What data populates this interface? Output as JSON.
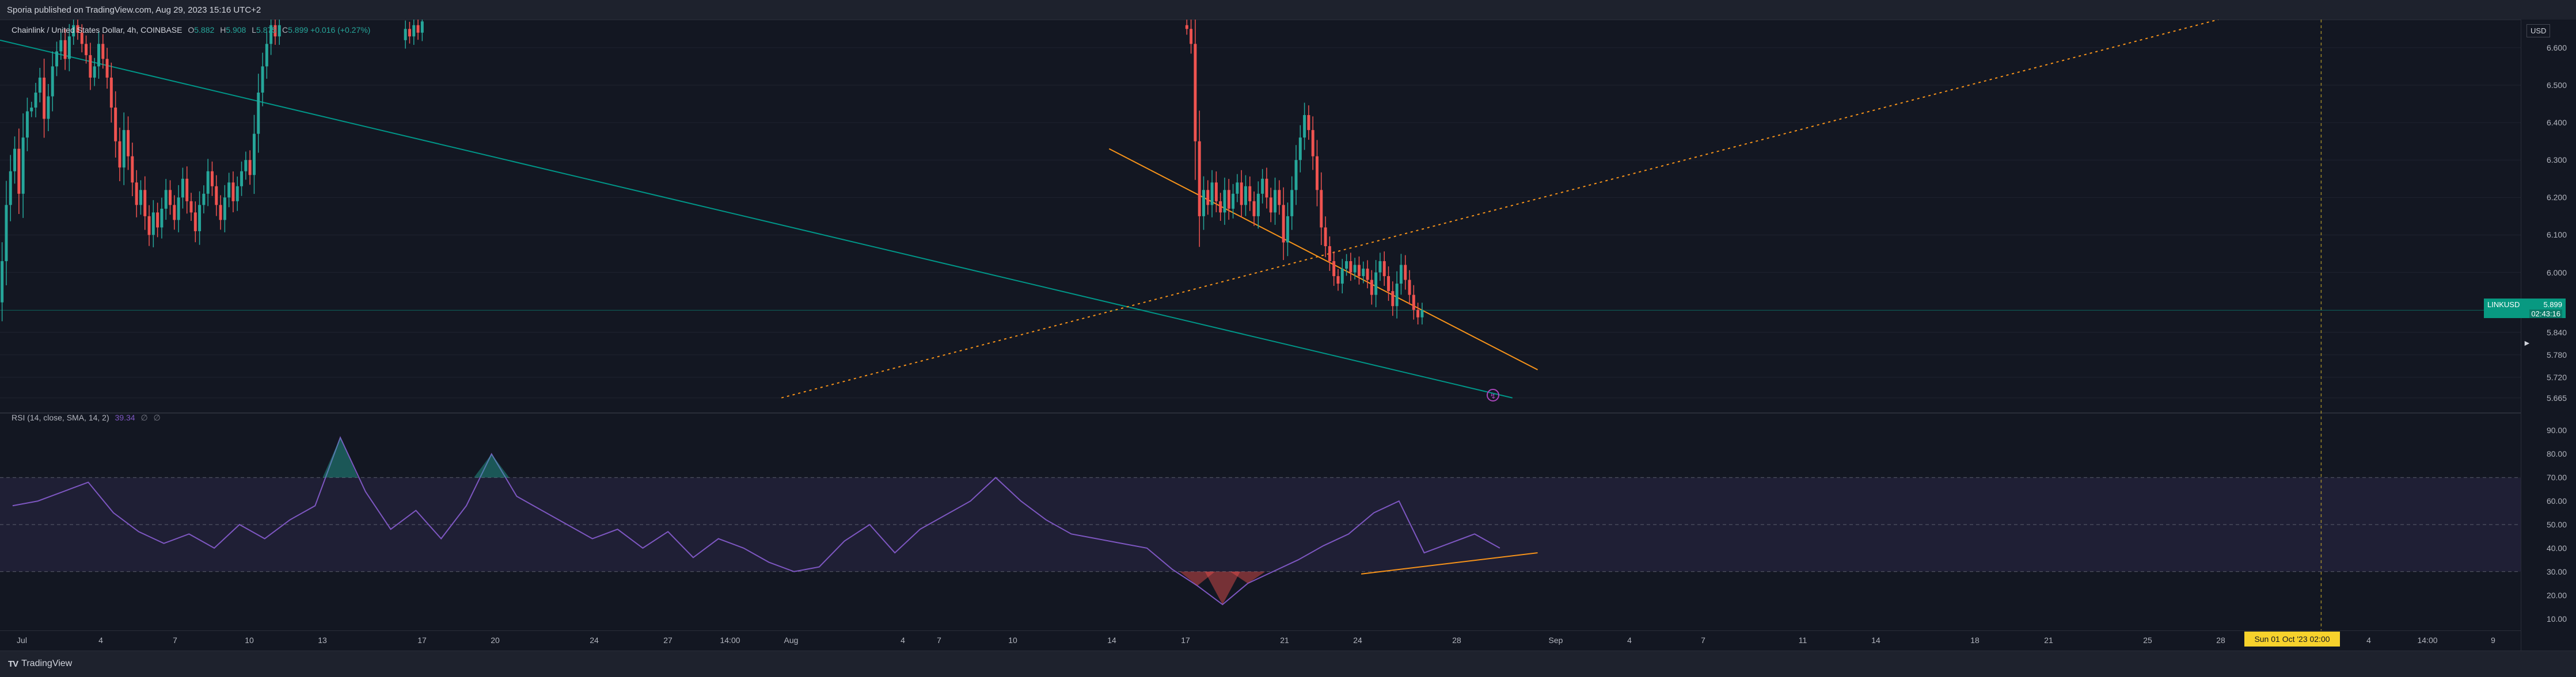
{
  "header": {
    "publish_text": "Sporia published on TradingView.com, Aug 29, 2023 15:16 UTC+2"
  },
  "legend": {
    "symbol": "Chainlink / United States Dollar, 4h, COINBASE",
    "open_label": "O",
    "open": "5.882",
    "high_label": "H",
    "high": "5.908",
    "low_label": "L",
    "low": "5.875",
    "close_label": "C",
    "close": "5.899",
    "change": "+0.016 (+0.27%)"
  },
  "rsi_legend": {
    "label": "RSI (14, close, SMA, 14, 2)",
    "value": "39.34",
    "na1": "∅",
    "na2": "∅"
  },
  "price_axis": {
    "currency": "USD",
    "labels": [
      "6.600",
      "6.500",
      "6.400",
      "6.300",
      "6.200",
      "6.100",
      "6.000",
      "5.840",
      "5.780",
      "5.720",
      "5.665"
    ]
  },
  "rsi_axis": {
    "labels": [
      "90.00",
      "80.00",
      "70.00",
      "60.00",
      "50.00",
      "40.00",
      "30.00",
      "20.00",
      "10.00"
    ]
  },
  "last_price": {
    "symbol": "LINKUSD",
    "price": "5.899",
    "countdown": "02:43:16"
  },
  "time_axis": {
    "labels": [
      "Jul",
      "4",
      "7",
      "10",
      "13",
      "17",
      "20",
      "24",
      "27",
      "14:00",
      "Aug",
      "4",
      "7",
      "10",
      "14",
      "17",
      "21",
      "24",
      "28",
      "Sep",
      "4",
      "7",
      "11",
      "14",
      "18",
      "21",
      "25",
      "28",
      "Oct",
      "4",
      "14:00",
      "9"
    ],
    "crosshair_date": "Sun 01 Oct '23   02:00"
  },
  "footer": {
    "brand": "TradingView"
  },
  "colors": {
    "up": "#26a69a",
    "down": "#ef5350",
    "rsi": "#7e57c2",
    "trend_orange": "#f7931a",
    "trend_teal": "#009688"
  },
  "chart_data": [
    {
      "type": "candlestick",
      "title": "Chainlink / United States Dollar, 4h, COINBASE",
      "ylim": [
        5.64,
        6.675
      ],
      "x_range": [
        "2023-07-01",
        "2023-10-09"
      ],
      "segments": [
        {
          "start": "2023-07-01",
          "start_price": 5.92,
          "closes": [
            6.03,
            6.18,
            6.27,
            6.33,
            6.21,
            6.36,
            6.43,
            6.44,
            6.48,
            6.52,
            6.41,
            6.47,
            6.55,
            6.59,
            6.62,
            6.57,
            6.63,
            6.66,
            6.64,
            6.61,
            6.58,
            6.52,
            6.55,
            6.61,
            6.57,
            6.52,
            6.44,
            6.35,
            6.28,
            6.38,
            6.31,
            6.24,
            6.18,
            6.22,
            6.15,
            6.1,
            6.16,
            6.12,
            6.17,
            6.22,
            6.18,
            6.14,
            6.2,
            6.25,
            6.19,
            6.16,
            6.11,
            6.18,
            6.21,
            6.27,
            6.23,
            6.18,
            6.14,
            6.2,
            6.24,
            6.19,
            6.23,
            6.27,
            6.3,
            6.26,
            6.37,
            6.48,
            6.55,
            6.61,
            6.66,
            6.63,
            6.66
          ]
        },
        {
          "start": "2023-07-17",
          "start_price": 6.62,
          "closes": [
            6.65,
            6.63,
            6.66,
            6.64,
            6.67
          ]
        },
        {
          "start": "2023-08-17",
          "start_price": 6.66,
          "closes": [
            6.65,
            6.61,
            6.35,
            6.15,
            6.22,
            6.18,
            6.24,
            6.19,
            6.16,
            6.22,
            6.17,
            6.21,
            6.24,
            6.18,
            6.23,
            6.19,
            6.15,
            6.21,
            6.25,
            6.2,
            6.16,
            6.22,
            6.18,
            6.08,
            6.15,
            6.22,
            6.3,
            6.36,
            6.42,
            6.38,
            6.31,
            6.22,
            6.12,
            6.07,
            6.03,
            5.99,
            5.97,
            6.01,
            6.03,
            6.0,
            6.02,
            5.99,
            6.01,
            5.98,
            5.94,
            6.0,
            6.03,
            5.99,
            5.95,
            5.91,
            5.97,
            6.02,
            5.98,
            5.94,
            5.9,
            5.88,
            5.9
          ]
        }
      ],
      "trendlines": [
        {
          "name": "teal",
          "from": [
            "2023-07-01",
            6.62
          ],
          "to": [
            "2023-08-30",
            5.665
          ]
        },
        {
          "name": "orange-solid",
          "from": [
            "2023-08-14",
            6.33
          ],
          "to": [
            "2023-08-31",
            5.74
          ]
        },
        {
          "name": "orange-dotted",
          "from": [
            "2023-08-01",
            5.665
          ],
          "to": [
            "2023-09-27",
            6.675
          ]
        }
      ],
      "last_price": 5.899
    },
    {
      "type": "line",
      "title": "RSI (14, close, SMA, 14, 2)",
      "ylim": [
        5,
        95
      ],
      "bands": {
        "upper": 70,
        "middle": 50,
        "lower": 30
      },
      "x_range": [
        "2023-07-01",
        "2023-10-09"
      ],
      "x": [
        "2023-07-01",
        "2023-07-02",
        "2023-07-03",
        "2023-07-04",
        "2023-07-05",
        "2023-07-06",
        "2023-07-07",
        "2023-07-08",
        "2023-07-09",
        "2023-07-10",
        "2023-07-11",
        "2023-07-12",
        "2023-07-13",
        "2023-07-14",
        "2023-07-15",
        "2023-07-16",
        "2023-07-17",
        "2023-07-18",
        "2023-07-19",
        "2023-07-20",
        "2023-07-21",
        "2023-07-22",
        "2023-07-23",
        "2023-07-24",
        "2023-07-25",
        "2023-07-26",
        "2023-07-27",
        "2023-07-28",
        "2023-07-29",
        "2023-07-30",
        "2023-07-31",
        "2023-08-01",
        "2023-08-02",
        "2023-08-03",
        "2023-08-04",
        "2023-08-05",
        "2023-08-06",
        "2023-08-07",
        "2023-08-08",
        "2023-08-09",
        "2023-08-10",
        "2023-08-11",
        "2023-08-12",
        "2023-08-13",
        "2023-08-14",
        "2023-08-15",
        "2023-08-16",
        "2023-08-17",
        "2023-08-18",
        "2023-08-19",
        "2023-08-20",
        "2023-08-21",
        "2023-08-22",
        "2023-08-23",
        "2023-08-24",
        "2023-08-25",
        "2023-08-26",
        "2023-08-27",
        "2023-08-28",
        "2023-08-29"
      ],
      "values": [
        58,
        60,
        64,
        68,
        55,
        47,
        42,
        46,
        40,
        50,
        44,
        52,
        58,
        87,
        64,
        48,
        56,
        44,
        58,
        80,
        62,
        56,
        50,
        44,
        48,
        40,
        47,
        36,
        44,
        40,
        34,
        30,
        32,
        43,
        50,
        38,
        48,
        54,
        60,
        70,
        60,
        52,
        46,
        44,
        42,
        40,
        31,
        24,
        16,
        25,
        30,
        35,
        41,
        46,
        55,
        60,
        38,
        42,
        46,
        40
      ],
      "series": [
        {
          "name": "RSI",
          "color": "#7e57c2"
        }
      ],
      "trendlines": [
        {
          "name": "rsi-support",
          "from": [
            "2023-08-24",
            29
          ],
          "to": [
            "2023-08-31",
            38
          ]
        }
      ]
    }
  ]
}
